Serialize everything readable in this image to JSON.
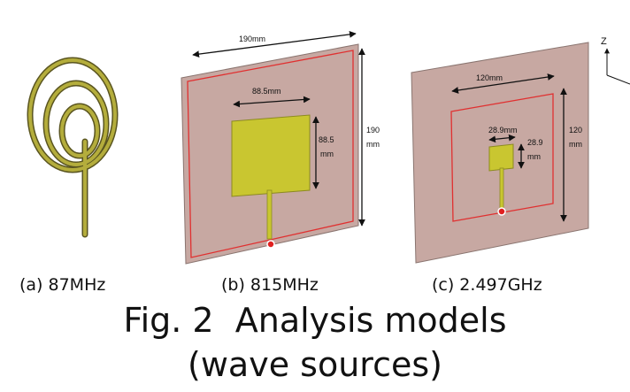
{
  "panels": [
    {
      "caption": "(a) 87MHz"
    },
    {
      "caption": "(b) 815MHz",
      "dimensions": [
        "190mm",
        "88.5mm",
        "88.5",
        "mm",
        "190",
        "mm"
      ]
    },
    {
      "caption": "(c) 2.497GHz",
      "dimensions": [
        "120mm",
        "28.9mm",
        "28.9",
        "mm",
        "120",
        "mm"
      ]
    }
  ],
  "axis_label": "Z",
  "figure_caption": {
    "line1": "Fig. 2  Analysis models",
    "line2": "(wave sources)"
  }
}
